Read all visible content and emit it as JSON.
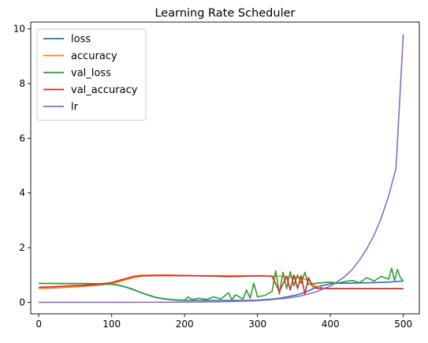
{
  "chart_data": {
    "type": "line",
    "title": "Learning Rate Scheduler",
    "xlabel": "",
    "ylabel": "",
    "xlim": [
      -11,
      522
    ],
    "ylim": [
      -0.42,
      10.25
    ],
    "xticks": [
      0,
      100,
      200,
      300,
      400,
      500
    ],
    "yticks": [
      0,
      2,
      4,
      6,
      8,
      10
    ],
    "grid": false,
    "legend_position": "top-left",
    "series": [
      {
        "name": "loss",
        "color": "#1f77b4",
        "x": [
          0,
          20,
          40,
          60,
          80,
          100,
          110,
          120,
          130,
          140,
          150,
          160,
          170,
          180,
          190,
          200,
          220,
          240,
          260,
          280,
          300,
          310,
          320,
          330,
          340,
          350,
          360,
          370,
          380,
          390,
          400,
          410,
          420,
          440,
          460,
          480,
          490,
          500
        ],
        "y": [
          0.69,
          0.69,
          0.69,
          0.69,
          0.68,
          0.66,
          0.62,
          0.55,
          0.46,
          0.36,
          0.26,
          0.18,
          0.13,
          0.1,
          0.08,
          0.07,
          0.07,
          0.07,
          0.07,
          0.07,
          0.08,
          0.1,
          0.12,
          0.15,
          0.2,
          0.25,
          0.32,
          0.42,
          0.55,
          0.62,
          0.68,
          0.7,
          0.7,
          0.71,
          0.72,
          0.74,
          0.76,
          0.78
        ]
      },
      {
        "name": "accuracy",
        "color": "#ff7f0e",
        "x": [
          0,
          20,
          40,
          60,
          80,
          100,
          110,
          120,
          130,
          140,
          160,
          200,
          250,
          300,
          320,
          340,
          360,
          370,
          380,
          390,
          400,
          450,
          500
        ],
        "y": [
          0.5,
          0.52,
          0.55,
          0.58,
          0.62,
          0.68,
          0.75,
          0.83,
          0.9,
          0.95,
          0.97,
          0.97,
          0.97,
          0.97,
          0.96,
          0.95,
          0.9,
          0.8,
          0.6,
          0.52,
          0.5,
          0.5,
          0.5
        ]
      },
      {
        "name": "val_loss",
        "color": "#2ca02c",
        "x": [
          0,
          20,
          40,
          60,
          80,
          100,
          110,
          120,
          130,
          140,
          150,
          160,
          170,
          180,
          190,
          200,
          205,
          210,
          220,
          230,
          240,
          250,
          260,
          265,
          270,
          280,
          285,
          290,
          295,
          300,
          310,
          320,
          325,
          330,
          335,
          340,
          345,
          350,
          355,
          360,
          365,
          370,
          380,
          390,
          400,
          410,
          420,
          430,
          440,
          450,
          460,
          470,
          480,
          484,
          488,
          492,
          496,
          500
        ],
        "y": [
          0.69,
          0.69,
          0.68,
          0.68,
          0.67,
          0.66,
          0.63,
          0.56,
          0.47,
          0.36,
          0.27,
          0.19,
          0.14,
          0.11,
          0.09,
          0.08,
          0.2,
          0.1,
          0.15,
          0.1,
          0.2,
          0.12,
          0.35,
          0.1,
          0.28,
          0.12,
          0.45,
          0.15,
          0.7,
          0.2,
          0.25,
          0.4,
          1.15,
          0.3,
          1.1,
          0.5,
          1.12,
          0.6,
          1.0,
          0.7,
          1.1,
          0.65,
          0.7,
          0.72,
          0.74,
          0.7,
          0.76,
          0.8,
          0.72,
          0.9,
          0.78,
          0.95,
          0.85,
          1.25,
          0.8,
          1.2,
          0.9,
          0.78
        ]
      },
      {
        "name": "val_accuracy",
        "color": "#d62728",
        "x": [
          0,
          20,
          40,
          60,
          80,
          100,
          110,
          120,
          130,
          140,
          160,
          180,
          200,
          220,
          240,
          260,
          280,
          300,
          320,
          330,
          340,
          345,
          350,
          355,
          360,
          365,
          370,
          375,
          380,
          390,
          400,
          420,
          450,
          500
        ],
        "y": [
          0.55,
          0.57,
          0.6,
          0.62,
          0.66,
          0.72,
          0.8,
          0.87,
          0.95,
          0.98,
          0.99,
          0.99,
          0.98,
          0.97,
          0.96,
          0.94,
          0.95,
          0.97,
          0.95,
          0.4,
          0.95,
          0.45,
          1.0,
          0.5,
          0.98,
          0.3,
          0.9,
          0.6,
          0.52,
          0.5,
          0.5,
          0.5,
          0.5,
          0.5
        ]
      },
      {
        "name": "lr",
        "color": "#9467bd",
        "x": [
          0,
          50,
          100,
          150,
          200,
          250,
          300,
          320,
          340,
          360,
          380,
          400,
          410,
          420,
          430,
          440,
          450,
          460,
          470,
          480,
          490,
          500
        ],
        "y": [
          0.0,
          0.0,
          0.0,
          0.002,
          0.006,
          0.02,
          0.06,
          0.1,
          0.15,
          0.24,
          0.38,
          0.6,
          0.76,
          0.95,
          1.2,
          1.55,
          1.96,
          2.46,
          3.1,
          3.9,
          4.9,
          9.8
        ]
      }
    ]
  }
}
